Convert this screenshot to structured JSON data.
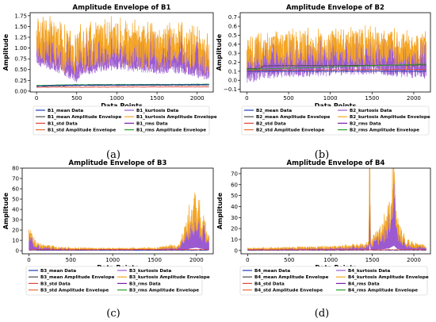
{
  "series_colors": {
    "mean": "#1f3fb4",
    "kurtosis": "#9b59d0",
    "std": "#e0443a",
    "kurtosis_env": "#f5a623",
    "rms": "#7a1fa2",
    "rms_env": "#2ca02c",
    "mean_env": "#4a4a4a",
    "std_env": "#e8703a"
  },
  "chart_data": [
    {
      "type": "line",
      "title": "Amplitude Envelope of B1",
      "caption": "(a)",
      "xlabel": "Data Points",
      "ylabel": "Amplitude",
      "xlim": [
        -80,
        2200
      ],
      "ylim": [
        -0.02,
        1.82
      ],
      "xticks": [
        0,
        500,
        1000,
        1500,
        2000
      ],
      "yticks": [
        0.0,
        0.25,
        0.5,
        0.75,
        1.0,
        1.25,
        1.5,
        1.75
      ],
      "ytick_labels": [
        "0.00",
        "0.25",
        "0.50",
        "0.75",
        "1.00",
        "1.25",
        "1.50",
        "1.75"
      ],
      "legend": [
        "B1_mean Data",
        "B1_kurtosis Data",
        "B1_mean Amplitude Envelope",
        "B1_kurtosis Amplitude Envelope",
        "B1_std Data",
        "B1_rms Data",
        "B1_std Amplitude Envelope",
        "B1_rms Amplitude Envelope"
      ],
      "kurtosis_profile": [
        [
          0,
          1.15
        ],
        [
          150,
          1.05
        ],
        [
          300,
          0.95
        ],
        [
          500,
          0.75
        ],
        [
          550,
          0.9
        ],
        [
          800,
          1.0
        ],
        [
          1000,
          1.05
        ],
        [
          1200,
          1.0
        ],
        [
          1500,
          0.95
        ],
        [
          1800,
          0.95
        ],
        [
          2000,
          0.85
        ],
        [
          2150,
          0.8
        ]
      ],
      "flat_series": [
        {
          "key": "rms_env",
          "values": [
            [
              0,
              0.13
            ],
            [
              500,
              0.15
            ],
            [
              2150,
              0.16
            ]
          ]
        },
        {
          "key": "mean_env",
          "values": [
            [
              0,
              0.11
            ],
            [
              500,
              0.13
            ],
            [
              2150,
              0.14
            ]
          ]
        },
        {
          "key": "std",
          "values": [
            [
              0,
              0.09
            ],
            [
              2150,
              0.1
            ]
          ]
        },
        {
          "key": "mean",
          "values": [
            [
              0,
              0.12
            ],
            [
              500,
              0.14
            ],
            [
              2150,
              0.15
            ]
          ]
        }
      ]
    },
    {
      "type": "line",
      "title": "Amplitude Envelope of B2",
      "caption": "(b)",
      "xlabel": "Data Points",
      "ylabel": "Amplitude",
      "xlim": [
        -80,
        2200
      ],
      "ylim": [
        -0.13,
        0.75
      ],
      "xticks": [
        0,
        500,
        1000,
        1500,
        2000
      ],
      "yticks": [
        -0.1,
        0.0,
        0.1,
        0.2,
        0.3,
        0.4,
        0.5,
        0.6,
        0.7
      ],
      "ytick_labels": [
        "−0.1",
        "0.0",
        "0.1",
        "0.2",
        "0.3",
        "0.4",
        "0.5",
        "0.6",
        "0.7"
      ],
      "legend": [
        "B2_mean Data",
        "B2_kurtosis Data",
        "B2_mean Amplitude Envelope",
        "B2_kurtosis Amplitude Envelope",
        "B2_std Data",
        "B2_rms Data",
        "B2_std Amplitude Envelope",
        "B2_rms Amplitude Envelope"
      ],
      "kurtosis_profile": [
        [
          0,
          0.22
        ],
        [
          200,
          0.28
        ],
        [
          500,
          0.3
        ],
        [
          800,
          0.3
        ],
        [
          1200,
          0.32
        ],
        [
          1500,
          0.33
        ],
        [
          1800,
          0.3
        ],
        [
          2150,
          0.28
        ]
      ],
      "flat_series": [
        {
          "key": "mean_env",
          "values": [
            [
              0,
              0.13
            ],
            [
              150,
              0.13
            ],
            [
              200,
              0.16
            ],
            [
              2150,
              0.17
            ]
          ]
        },
        {
          "key": "rms_env",
          "values": [
            [
              0,
              0.12
            ],
            [
              2150,
              0.18
            ]
          ]
        },
        {
          "key": "std",
          "values": [
            [
              0,
              0.11
            ],
            [
              2150,
              0.12
            ]
          ]
        },
        {
          "key": "mean",
          "values": [
            [
              0,
              0.1
            ],
            [
              2150,
              0.1
            ]
          ]
        }
      ]
    },
    {
      "type": "line",
      "title": "Amplitude Envelope of B3",
      "caption": "(c)",
      "xlabel": "Data Points",
      "ylabel": "Amplitude",
      "xlim": [
        -80,
        2200
      ],
      "ylim": [
        -3,
        80
      ],
      "xticks": [
        0,
        500,
        1000,
        1500,
        2000
      ],
      "yticks": [
        0,
        10,
        20,
        30,
        40,
        50,
        60,
        70,
        80
      ],
      "ytick_labels": [
        "0",
        "10",
        "20",
        "30",
        "40",
        "50",
        "60",
        "70",
        "80"
      ],
      "legend": [
        "B3_mean Data",
        "B3_kurtosis Data",
        "B3_mean Amplitude Envelope",
        "B3_kurtosis Amplitude Envelope",
        "B3_std Data",
        "B3_rms Data",
        "B3_std Amplitude Envelope",
        "B3_rms Amplitude Envelope"
      ],
      "kurtosis_profile": [
        [
          0,
          13
        ],
        [
          50,
          6
        ],
        [
          150,
          3
        ],
        [
          400,
          1.5
        ],
        [
          1000,
          1.2
        ],
        [
          1500,
          1.5
        ],
        [
          1800,
          3
        ],
        [
          1850,
          10
        ],
        [
          1950,
          25
        ],
        [
          2000,
          30
        ],
        [
          2050,
          20
        ],
        [
          2150,
          8
        ]
      ],
      "flat_series": [
        {
          "key": "mean",
          "values": [
            [
              0,
              0.5
            ],
            [
              2150,
              0.5
            ]
          ]
        },
        {
          "key": "std",
          "values": [
            [
              0,
              1
            ],
            [
              2150,
              1
            ]
          ]
        }
      ]
    },
    {
      "type": "line",
      "title": "Amplitude Envelope of B4",
      "caption": "(d)",
      "xlabel": "Data Points",
      "ylabel": "Amplitude",
      "xlim": [
        -80,
        2200
      ],
      "ylim": [
        -3,
        75
      ],
      "xticks": [
        0,
        500,
        1000,
        1500,
        2000
      ],
      "yticks": [
        0,
        10,
        20,
        30,
        40,
        50,
        60,
        70
      ],
      "ytick_labels": [
        "0",
        "10",
        "20",
        "30",
        "40",
        "50",
        "60",
        "70"
      ],
      "legend": [
        "B4_mean Data",
        "B4_kurtosis Data",
        "B4_mean Amplitude Envelope",
        "B4_kurtosis Amplitude Envelope",
        "B4_std Data",
        "B4_rms Data",
        "B4_std Amplitude Envelope",
        "B4_rms Amplitude Envelope"
      ],
      "kurtosis_profile": [
        [
          0,
          1
        ],
        [
          500,
          1.5
        ],
        [
          1000,
          2
        ],
        [
          1400,
          3
        ],
        [
          1460,
          5
        ],
        [
          1470,
          70
        ],
        [
          1480,
          5
        ],
        [
          1550,
          8
        ],
        [
          1650,
          15
        ],
        [
          1700,
          20
        ],
        [
          1760,
          45
        ],
        [
          1800,
          15
        ],
        [
          1900,
          5
        ],
        [
          2150,
          2
        ]
      ],
      "flat_series": [
        {
          "key": "mean",
          "values": [
            [
              0,
              0.3
            ],
            [
              2150,
              0.3
            ]
          ]
        },
        {
          "key": "std",
          "values": [
            [
              0,
              0.6
            ],
            [
              2150,
              0.7
            ]
          ]
        }
      ]
    }
  ]
}
